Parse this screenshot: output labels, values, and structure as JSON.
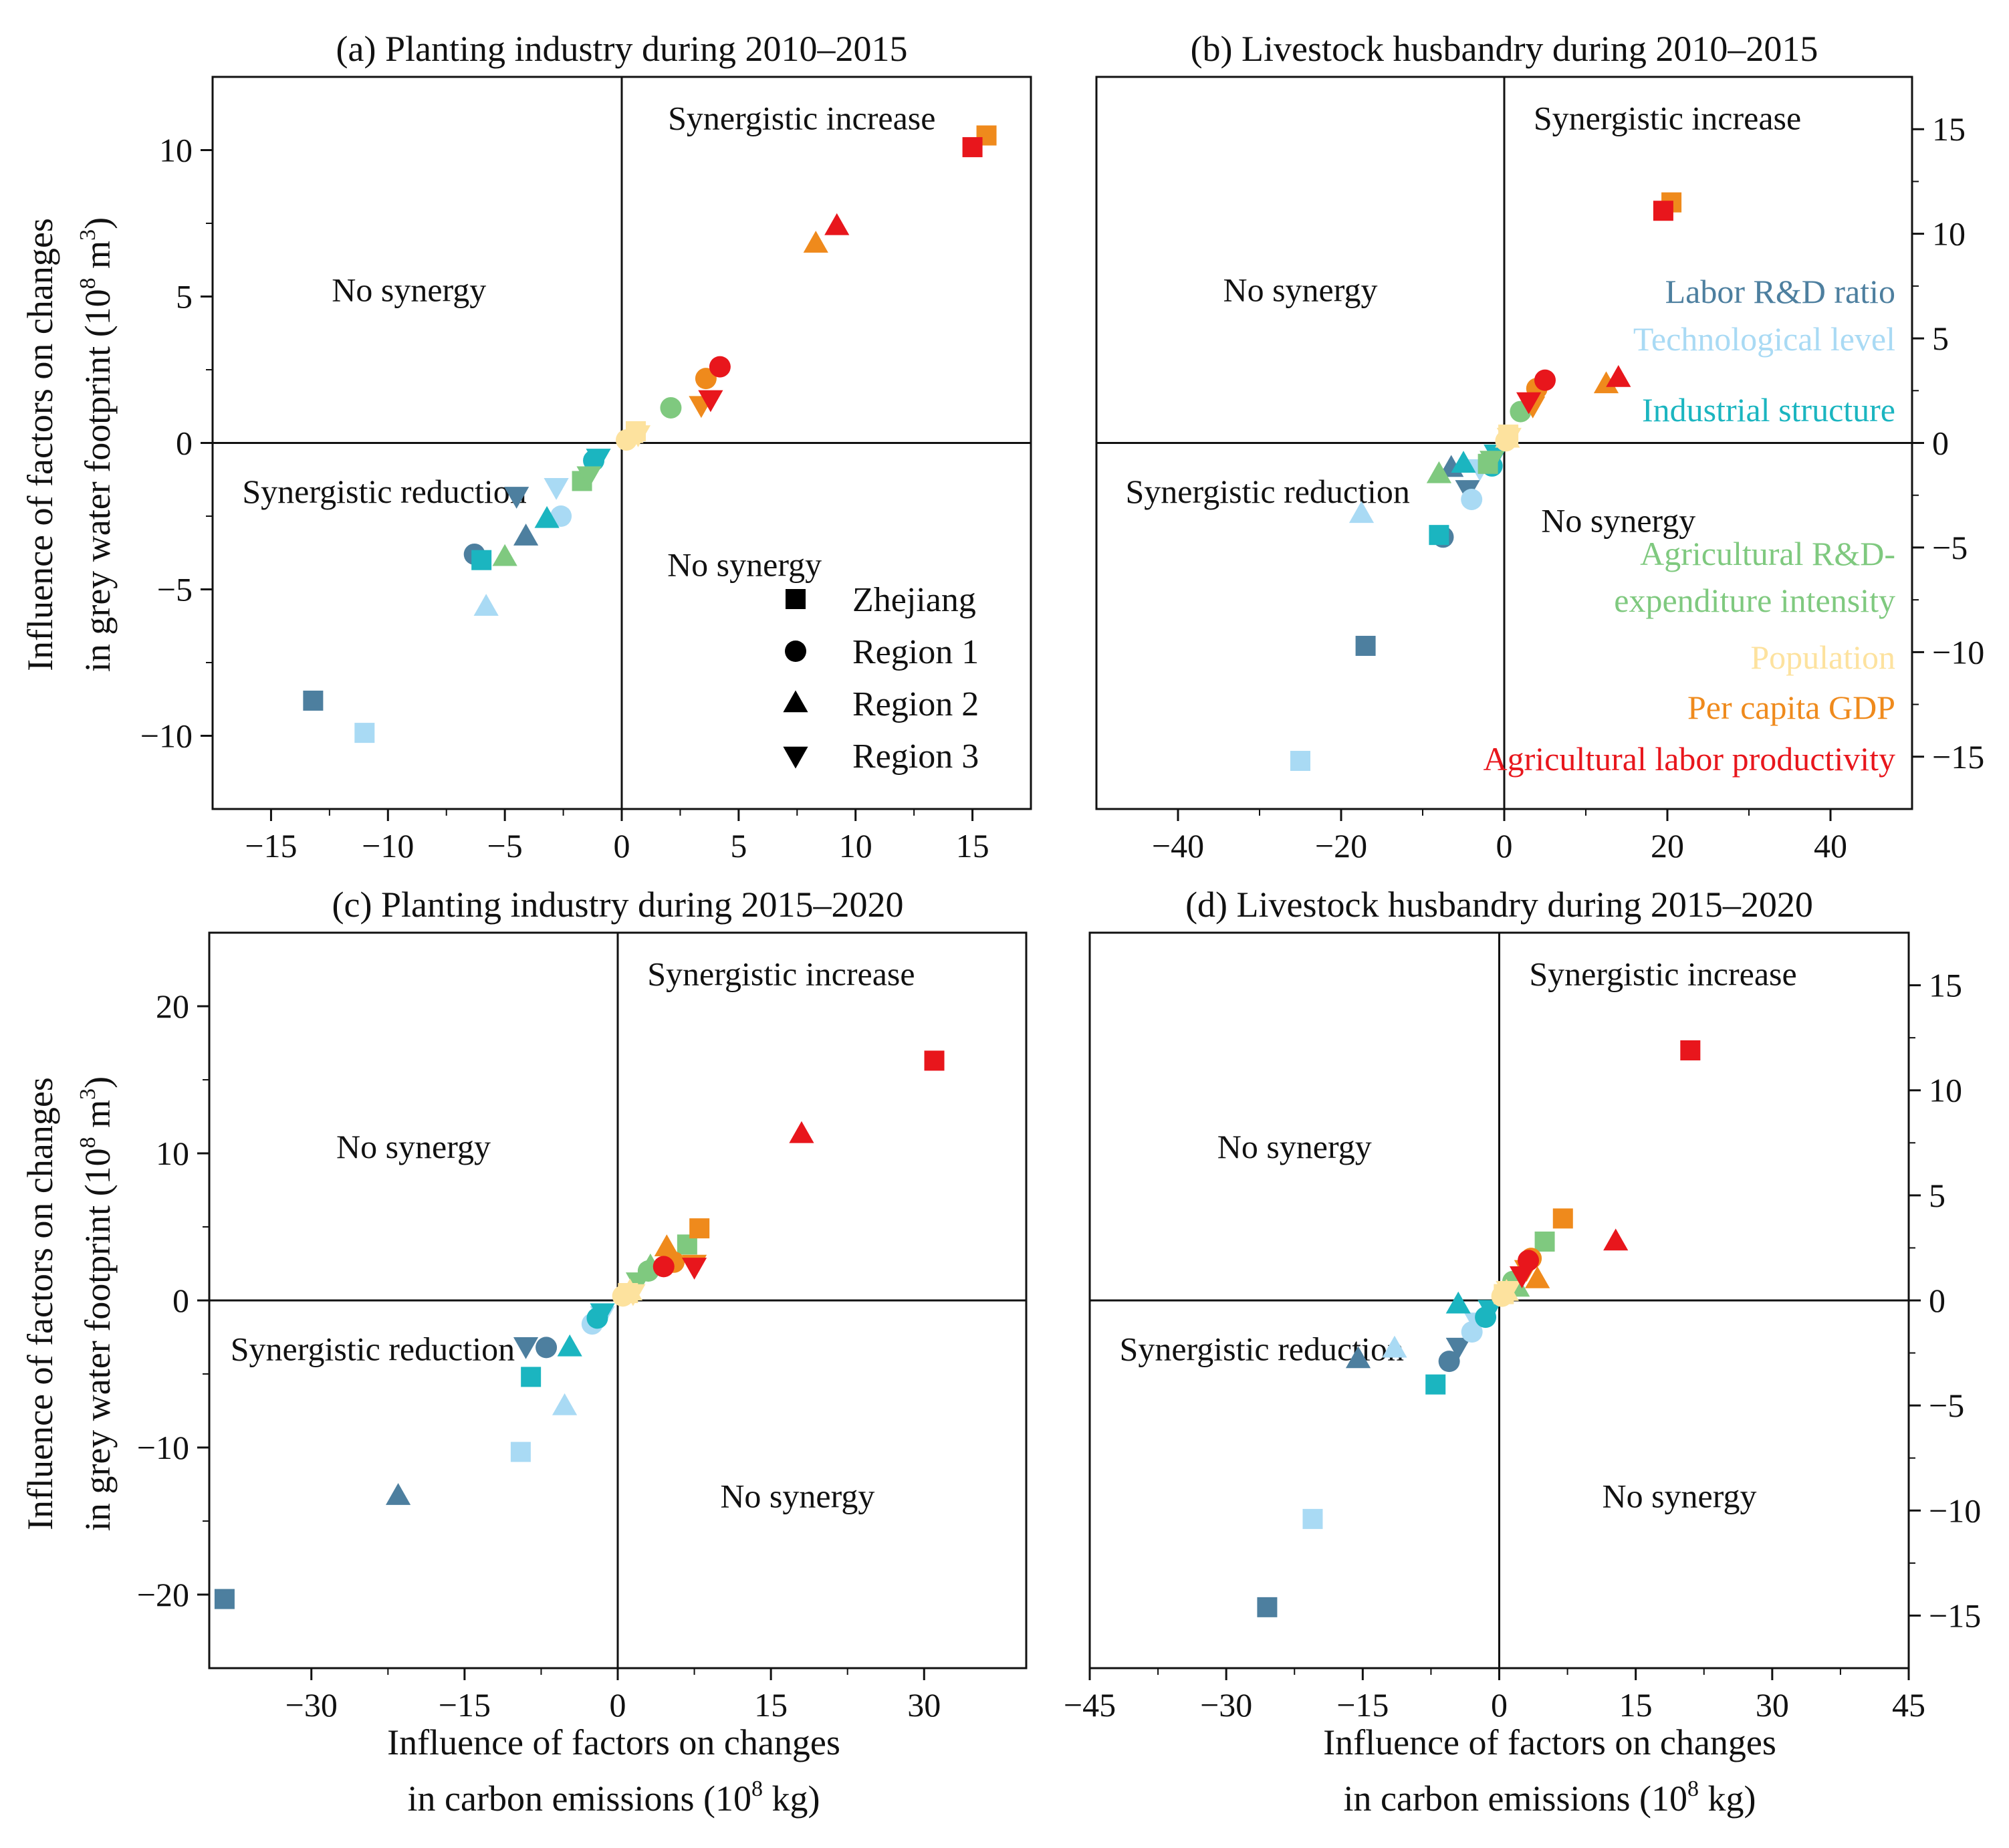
{
  "colors": {
    "labor_rd": "#4d7f9f",
    "tech": "#a9daf4",
    "industrial": "#1bb5c0",
    "agri_rd": "#7fc97f",
    "population": "#fde29e",
    "gdp": "#ef8a1c",
    "agri_labor": "#e8161c"
  },
  "figure": {
    "y_label_lines": [
      "Influence of factors on changes",
      "in grey water footprint (10",
      "8",
      " m",
      "3",
      ")"
    ],
    "x_label_lines": [
      "Influence of factors on changes",
      "in carbon emissions (10",
      "8",
      " kg)"
    ]
  },
  "legend": {
    "shapes": [
      {
        "marker": "square",
        "label": "Zhejiang"
      },
      {
        "marker": "circle",
        "label": "Region 1"
      },
      {
        "marker": "triangle",
        "label": "Region 2"
      },
      {
        "marker": "triangle-down",
        "label": "Region 3"
      }
    ],
    "factors": [
      {
        "key": "labor_rd",
        "lines": [
          "Labor R&D ratio"
        ]
      },
      {
        "key": "tech",
        "lines": [
          "Technological level"
        ]
      },
      {
        "key": "industrial",
        "lines": [
          "Industrial structure"
        ]
      },
      {
        "key": "agri_rd",
        "lines": [
          "Agricultural R&D-",
          "expenditure intensity"
        ]
      },
      {
        "key": "population",
        "lines": [
          "Population"
        ]
      },
      {
        "key": "gdp",
        "lines": [
          "Per capita GDP"
        ]
      },
      {
        "key": "agri_labor",
        "lines": [
          "Agricultural labor productivity"
        ]
      }
    ]
  },
  "chart_data": [
    {
      "type": "scatter",
      "id": "a",
      "title": "(a) Planting industry during 2010–2015",
      "xlim": [
        -17.5,
        17.5
      ],
      "ylim": [
        -12.5,
        12.5
      ],
      "xticks": [
        -15,
        -10,
        -5,
        0,
        5,
        10,
        15
      ],
      "yticks": [
        -10,
        -5,
        0,
        5,
        10
      ],
      "xtick_labels": [
        "−15",
        "−10",
        "−5",
        "0",
        "5",
        "10",
        "15"
      ],
      "ytick_labels": [
        "−10",
        "−5",
        "0",
        "5",
        "10"
      ],
      "quadrant_labels": {
        "top_right": "Synergistic increase",
        "top_left": "No synergy",
        "bottom_left": "Synergistic reduction",
        "bottom_right": "No synergy"
      },
      "points": [
        {
          "f": "labor_rd",
          "m": "square",
          "x": -13.2,
          "y": -8.8
        },
        {
          "f": "labor_rd",
          "m": "circle",
          "x": -6.3,
          "y": -3.8
        },
        {
          "f": "labor_rd",
          "m": "triangle",
          "x": -4.1,
          "y": -3.2
        },
        {
          "f": "labor_rd",
          "m": "triangle-down",
          "x": -4.5,
          "y": -1.8
        },
        {
          "f": "tech",
          "m": "square",
          "x": -11,
          "y": -9.9
        },
        {
          "f": "tech",
          "m": "circle",
          "x": -2.6,
          "y": -2.5
        },
        {
          "f": "tech",
          "m": "triangle",
          "x": -5.8,
          "y": -5.6
        },
        {
          "f": "tech",
          "m": "triangle-down",
          "x": -2.8,
          "y": -1.5
        },
        {
          "f": "industrial",
          "m": "square",
          "x": -6,
          "y": -4
        },
        {
          "f": "industrial",
          "m": "circle",
          "x": -1.2,
          "y": -0.6
        },
        {
          "f": "industrial",
          "m": "triangle",
          "x": -3.2,
          "y": -2.6
        },
        {
          "f": "industrial",
          "m": "triangle-down",
          "x": -1,
          "y": -0.5
        },
        {
          "f": "agri_rd",
          "m": "square",
          "x": -1.7,
          "y": -1.3
        },
        {
          "f": "agri_rd",
          "m": "circle",
          "x": 2.1,
          "y": 1.2
        },
        {
          "f": "agri_rd",
          "m": "triangle",
          "x": -5,
          "y": -3.9
        },
        {
          "f": "agri_rd",
          "m": "triangle-down",
          "x": -1.4,
          "y": -1.1
        },
        {
          "f": "population",
          "m": "square",
          "x": 0.6,
          "y": 0.4
        },
        {
          "f": "population",
          "m": "circle",
          "x": 0.2,
          "y": 0.1
        },
        {
          "f": "population",
          "m": "triangle",
          "x": 0.4,
          "y": 0.3
        },
        {
          "f": "population",
          "m": "triangle-down",
          "x": 0.7,
          "y": 0.3
        },
        {
          "f": "gdp",
          "m": "square",
          "x": 15.6,
          "y": 10.5
        },
        {
          "f": "gdp",
          "m": "circle",
          "x": 3.6,
          "y": 2.2
        },
        {
          "f": "gdp",
          "m": "triangle",
          "x": 8.3,
          "y": 6.8
        },
        {
          "f": "gdp",
          "m": "triangle-down",
          "x": 3.4,
          "y": 1.3
        },
        {
          "f": "agri_labor",
          "m": "square",
          "x": 15,
          "y": 10.1
        },
        {
          "f": "agri_labor",
          "m": "circle",
          "x": 4.2,
          "y": 2.6
        },
        {
          "f": "agri_labor",
          "m": "triangle",
          "x": 9.2,
          "y": 7.4
        },
        {
          "f": "agri_labor",
          "m": "triangle-down",
          "x": 3.8,
          "y": 1.5
        }
      ]
    },
    {
      "type": "scatter",
      "id": "b",
      "title": "(b)  Livestock husbandry during 2010–2015",
      "xlim": [
        -50,
        50
      ],
      "ylim": [
        -17.5,
        17.5
      ],
      "xticks": [
        -40,
        -20,
        0,
        20,
        40
      ],
      "yticks": [
        -15,
        -10,
        -5,
        0,
        5,
        10,
        15
      ],
      "xtick_labels": [
        "−40",
        "−20",
        "0",
        "20",
        "40"
      ],
      "ytick_labels": [
        "−15",
        "−10",
        "−5",
        "0",
        "5",
        "10",
        "15"
      ],
      "y_ticks_right": true,
      "quadrant_labels": {
        "top_right": "Synergistic increase",
        "top_left": "No synergy",
        "bottom_left": "Synergistic reduction",
        "bottom_right": "No synergy"
      },
      "points": [
        {
          "f": "labor_rd",
          "m": "square",
          "x": -17,
          "y": -9.7
        },
        {
          "f": "labor_rd",
          "m": "circle",
          "x": -7.5,
          "y": -4.5
        },
        {
          "f": "labor_rd",
          "m": "triangle",
          "x": -6.5,
          "y": -1.2
        },
        {
          "f": "labor_rd",
          "m": "triangle-down",
          "x": -4.5,
          "y": -2.2
        },
        {
          "f": "tech",
          "m": "square",
          "x": -25,
          "y": -15.2
        },
        {
          "f": "tech",
          "m": "circle",
          "x": -4,
          "y": -2.7
        },
        {
          "f": "tech",
          "m": "triangle",
          "x": -17.5,
          "y": -3.4
        },
        {
          "f": "tech",
          "m": "triangle-down",
          "x": -3,
          "y": -1.2
        },
        {
          "f": "industrial",
          "m": "square",
          "x": -8,
          "y": -4.4
        },
        {
          "f": "industrial",
          "m": "circle",
          "x": -1.5,
          "y": -1.1
        },
        {
          "f": "industrial",
          "m": "triangle",
          "x": -5,
          "y": -1
        },
        {
          "f": "industrial",
          "m": "triangle-down",
          "x": -1,
          "y": -0.5
        },
        {
          "f": "agri_rd",
          "m": "square",
          "x": -2,
          "y": -1
        },
        {
          "f": "agri_rd",
          "m": "circle",
          "x": 2,
          "y": 1.5
        },
        {
          "f": "agri_rd",
          "m": "triangle",
          "x": -8,
          "y": -1.5
        },
        {
          "f": "agri_rd",
          "m": "triangle-down",
          "x": -1.5,
          "y": -0.8
        },
        {
          "f": "population",
          "m": "square",
          "x": 0.5,
          "y": 0.4
        },
        {
          "f": "population",
          "m": "circle",
          "x": 0.2,
          "y": 0.1
        },
        {
          "f": "population",
          "m": "triangle",
          "x": 0.4,
          "y": 0.2
        },
        {
          "f": "population",
          "m": "triangle-down",
          "x": 0.6,
          "y": 0.3
        },
        {
          "f": "gdp",
          "m": "square",
          "x": 20.5,
          "y": 11.5
        },
        {
          "f": "gdp",
          "m": "circle",
          "x": 4,
          "y": 2.6
        },
        {
          "f": "gdp",
          "m": "triangle",
          "x": 12.5,
          "y": 2.8
        },
        {
          "f": "gdp",
          "m": "triangle-down",
          "x": 3.5,
          "y": 1.8
        },
        {
          "f": "agri_labor",
          "m": "square",
          "x": 19.5,
          "y": 11.1
        },
        {
          "f": "agri_labor",
          "m": "circle",
          "x": 5,
          "y": 3
        },
        {
          "f": "agri_labor",
          "m": "triangle",
          "x": 14,
          "y": 3.1
        },
        {
          "f": "agri_labor",
          "m": "triangle-down",
          "x": 3,
          "y": 2
        }
      ]
    },
    {
      "type": "scatter",
      "id": "c",
      "title": "(c) Planting industry during 2015–2020",
      "xlim": [
        -40,
        40
      ],
      "ylim": [
        -25,
        25
      ],
      "xticks": [
        -30,
        -15,
        0,
        15,
        30
      ],
      "yticks": [
        -20,
        -10,
        0,
        10,
        20
      ],
      "xtick_labels": [
        "−30",
        "−15",
        "0",
        "15",
        "30"
      ],
      "ytick_labels": [
        "−20",
        "−10",
        "0",
        "10",
        "20"
      ],
      "quadrant_labels": {
        "top_right": "Synergistic increase",
        "top_left": "No synergy",
        "bottom_left": "Synergistic reduction",
        "bottom_right": "No synergy"
      },
      "points": [
        {
          "f": "labor_rd",
          "m": "square",
          "x": -38.5,
          "y": -20.3
        },
        {
          "f": "labor_rd",
          "m": "circle",
          "x": -7,
          "y": -3.2
        },
        {
          "f": "labor_rd",
          "m": "triangle",
          "x": -21.5,
          "y": -13.3
        },
        {
          "f": "labor_rd",
          "m": "triangle-down",
          "x": -9,
          "y": -3.1
        },
        {
          "f": "tech",
          "m": "square",
          "x": -9.5,
          "y": -10.3
        },
        {
          "f": "tech",
          "m": "circle",
          "x": -2.5,
          "y": -1.6
        },
        {
          "f": "tech",
          "m": "triangle",
          "x": -5.2,
          "y": -7.2
        },
        {
          "f": "tech",
          "m": "triangle-down",
          "x": -1.5,
          "y": -1
        },
        {
          "f": "industrial",
          "m": "square",
          "x": -8.5,
          "y": -5.2
        },
        {
          "f": "industrial",
          "m": "circle",
          "x": -2,
          "y": -1.2
        },
        {
          "f": "industrial",
          "m": "triangle",
          "x": -4.7,
          "y": -3.2
        },
        {
          "f": "industrial",
          "m": "triangle-down",
          "x": -1.5,
          "y": -0.8
        },
        {
          "f": "agri_rd",
          "m": "square",
          "x": 6.8,
          "y": 3.8
        },
        {
          "f": "agri_rd",
          "m": "circle",
          "x": 3,
          "y": 2
        },
        {
          "f": "agri_rd",
          "m": "triangle",
          "x": 3.2,
          "y": 2.3
        },
        {
          "f": "agri_rd",
          "m": "triangle-down",
          "x": 2,
          "y": 1.3
        },
        {
          "f": "population",
          "m": "square",
          "x": 1,
          "y": 0.5
        },
        {
          "f": "population",
          "m": "circle",
          "x": 0.5,
          "y": 0.3
        },
        {
          "f": "population",
          "m": "triangle",
          "x": 1.2,
          "y": 0.6
        },
        {
          "f": "population",
          "m": "triangle-down",
          "x": 1.5,
          "y": 0.5
        },
        {
          "f": "gdp",
          "m": "square",
          "x": 8,
          "y": 4.9
        },
        {
          "f": "gdp",
          "m": "circle",
          "x": 5.5,
          "y": 2.6
        },
        {
          "f": "gdp",
          "m": "triangle",
          "x": 4.8,
          "y": 3.6
        },
        {
          "f": "gdp",
          "m": "triangle-down",
          "x": 7.5,
          "y": 2.5
        },
        {
          "f": "agri_labor",
          "m": "square",
          "x": 31,
          "y": 16.3
        },
        {
          "f": "agri_labor",
          "m": "circle",
          "x": 4.5,
          "y": 2.3
        },
        {
          "f": "agri_labor",
          "m": "triangle",
          "x": 18,
          "y": 11.3
        },
        {
          "f": "agri_labor",
          "m": "triangle-down",
          "x": 7.5,
          "y": 2.3
        }
      ]
    },
    {
      "type": "scatter",
      "id": "d",
      "title": "(d)  Livestock husbandry during 2015–2020",
      "xlim": [
        -45,
        45
      ],
      "ylim": [
        -17.5,
        17.5
      ],
      "xticks": [
        -45,
        -30,
        -15,
        0,
        15,
        30,
        45
      ],
      "yticks": [
        -15,
        -10,
        -5,
        0,
        5,
        10,
        15
      ],
      "xtick_labels": [
        "−45",
        "−30",
        "−15",
        "0",
        "15",
        "30",
        "45"
      ],
      "ytick_labels": [
        "−15",
        "−10",
        "−5",
        "0",
        "5",
        "10",
        "15"
      ],
      "y_ticks_right": true,
      "quadrant_labels": {
        "top_right": "Synergistic increase",
        "top_left": "No synergy",
        "bottom_left": "Synergistic reduction",
        "bottom_right": "No synergy"
      },
      "points": [
        {
          "f": "labor_rd",
          "m": "square",
          "x": -25.5,
          "y": -14.6
        },
        {
          "f": "labor_rd",
          "m": "circle",
          "x": -5.5,
          "y": -2.9
        },
        {
          "f": "labor_rd",
          "m": "triangle",
          "x": -15.5,
          "y": -2.8
        },
        {
          "f": "labor_rd",
          "m": "triangle-down",
          "x": -4.5,
          "y": -2.2
        },
        {
          "f": "tech",
          "m": "square",
          "x": -20.5,
          "y": -10.4
        },
        {
          "f": "tech",
          "m": "circle",
          "x": -3,
          "y": -1.5
        },
        {
          "f": "tech",
          "m": "triangle",
          "x": -11.5,
          "y": -2.3
        },
        {
          "f": "tech",
          "m": "triangle-down",
          "x": -2.5,
          "y": -1
        },
        {
          "f": "industrial",
          "m": "square",
          "x": -7,
          "y": -4
        },
        {
          "f": "industrial",
          "m": "circle",
          "x": -1.5,
          "y": -0.8
        },
        {
          "f": "industrial",
          "m": "triangle",
          "x": -4.5,
          "y": -0.2
        },
        {
          "f": "industrial",
          "m": "triangle-down",
          "x": -1,
          "y": -0.4
        },
        {
          "f": "agri_rd",
          "m": "square",
          "x": 5,
          "y": 2.8
        },
        {
          "f": "agri_rd",
          "m": "circle",
          "x": 1.5,
          "y": 0.9
        },
        {
          "f": "agri_rd",
          "m": "triangle",
          "x": 2,
          "y": 0.6
        },
        {
          "f": "agri_rd",
          "m": "triangle-down",
          "x": 1,
          "y": 0.5
        },
        {
          "f": "population",
          "m": "square",
          "x": 0.5,
          "y": 0.3
        },
        {
          "f": "population",
          "m": "circle",
          "x": 0.3,
          "y": 0.2
        },
        {
          "f": "population",
          "m": "triangle",
          "x": 0.8,
          "y": 0.4
        },
        {
          "f": "population",
          "m": "triangle-down",
          "x": 1,
          "y": 0.5
        },
        {
          "f": "gdp",
          "m": "square",
          "x": 7,
          "y": 3.9
        },
        {
          "f": "gdp",
          "m": "circle",
          "x": 3.5,
          "y": 2
        },
        {
          "f": "gdp",
          "m": "triangle",
          "x": 4.2,
          "y": 1
        },
        {
          "f": "gdp",
          "m": "triangle-down",
          "x": 3,
          "y": 1.5
        },
        {
          "f": "agri_labor",
          "m": "square",
          "x": 21,
          "y": 11.9
        },
        {
          "f": "agri_labor",
          "m": "circle",
          "x": 3.2,
          "y": 1.9
        },
        {
          "f": "agri_labor",
          "m": "triangle",
          "x": 12.8,
          "y": 2.8
        },
        {
          "f": "agri_labor",
          "m": "triangle-down",
          "x": 2.5,
          "y": 1.2
        }
      ]
    }
  ]
}
